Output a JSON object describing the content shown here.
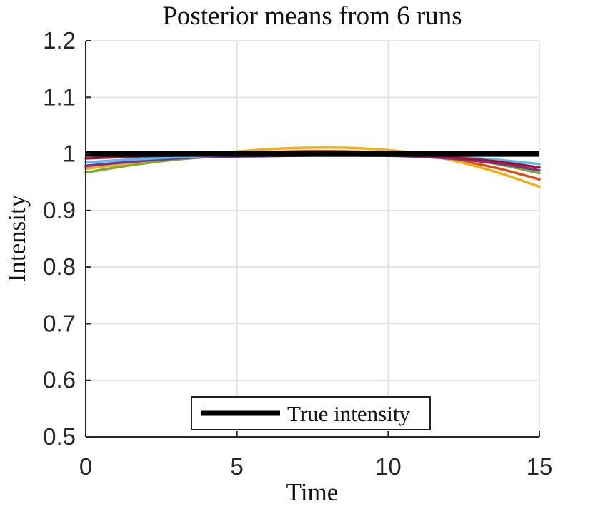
{
  "figure": {
    "background": "#ffffff",
    "title": "Posterior means from 6 runs"
  },
  "chart_data": {
    "type": "line",
    "title": "Posterior means from 6 runs",
    "xlabel": "Time",
    "ylabel": "Intensity",
    "xlim": [
      0,
      15
    ],
    "ylim": [
      0.5,
      1.2
    ],
    "xticks": [
      "0",
      "5",
      "10",
      "15"
    ],
    "yticks": [
      "0.5",
      "0.6",
      "0.7",
      "0.8",
      "0.9",
      "1",
      "1.1",
      "1.2"
    ],
    "grid": true,
    "legend": {
      "label": "True intensity",
      "position": "south",
      "sample_color": "#000000"
    },
    "colors": {
      "grid": "#e2e2e2",
      "axis": "#262626",
      "tick_text": "#262626"
    },
    "x": [
      0,
      1.5,
      3,
      4.5,
      6,
      7.5,
      9,
      10.5,
      12,
      13.5,
      15
    ],
    "series": [
      {
        "name": "posterior-mean-run-green",
        "color": "#77AC30",
        "values": [
          0.967,
          0.98,
          0.99,
          0.996,
          0.998,
          0.998,
          0.998,
          0.997,
          0.993,
          0.983,
          0.966
        ]
      },
      {
        "name": "posterior-mean-run-orange",
        "color": "#D95319",
        "values": [
          0.9755,
          0.985,
          0.993,
          0.999,
          1.003,
          1.005,
          1.004,
          1.0,
          0.991,
          0.976,
          0.955
        ]
      },
      {
        "name": "posterior-mean-run-gold",
        "color": "#EDB120",
        "values": [
          0.9735,
          0.984,
          0.994,
          1.002,
          1.008,
          1.011,
          1.01,
          1.004,
          0.99,
          0.969,
          0.942
        ]
      },
      {
        "name": "posterior-mean-run-purple",
        "color": "#7E2F8E",
        "values": [
          0.979,
          0.986,
          0.992,
          0.995,
          0.996,
          0.997,
          0.997,
          0.996,
          0.992,
          0.984,
          0.971
        ]
      },
      {
        "name": "posterior-mean-run-cyan",
        "color": "#4DBEEE",
        "values": [
          0.985,
          0.99,
          0.994,
          0.997,
          0.999,
          0.999,
          0.999,
          0.998,
          0.995,
          0.99,
          0.982
        ]
      },
      {
        "name": "posterior-mean-run-maroon",
        "color": "#A2142F",
        "values": [
          0.992,
          0.995,
          0.997,
          0.998,
          0.999,
          1.0,
          1.0,
          0.998,
          0.994,
          0.987,
          0.976
        ]
      }
    ],
    "true_line": {
      "name": "true-intensity",
      "color": "#000000",
      "value": 1.0
    },
    "series_line_width": 3.5,
    "true_line_width": 8
  }
}
